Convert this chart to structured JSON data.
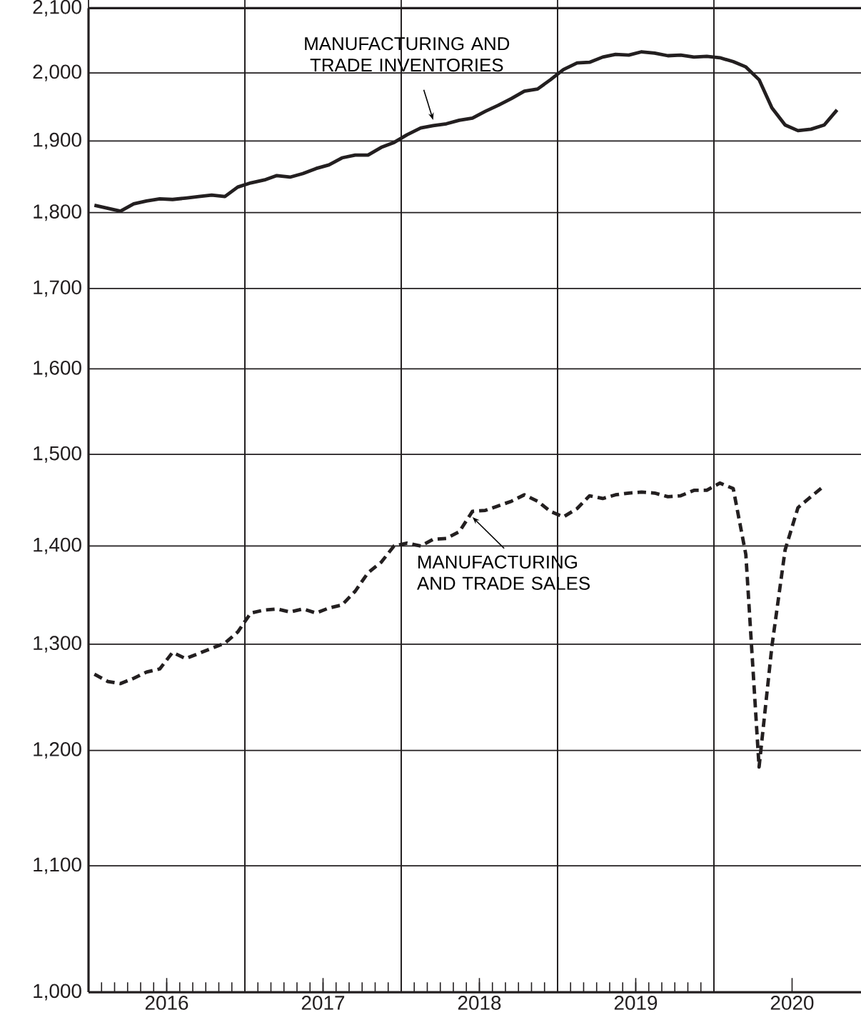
{
  "chart_data": {
    "type": "line",
    "log": "y",
    "grid": true,
    "marker": "none",
    "xlim": [
      "2016-01-01",
      "2020-12-10"
    ],
    "xticks": [
      {
        "value": "2016-01-01",
        "label": null
      },
      {
        "value": "2016-07-01",
        "label": "2016"
      },
      {
        "value": "2017-01-01",
        "label": null
      },
      {
        "value": "2017-07-01",
        "label": "2017"
      },
      {
        "value": "2018-01-01",
        "label": null
      },
      {
        "value": "2018-07-01",
        "label": "2018"
      },
      {
        "value": "2019-01-01",
        "label": null
      },
      {
        "value": "2019-07-01",
        "label": "2019"
      },
      {
        "value": "2020-01-01",
        "label": null
      },
      {
        "value": "2020-07-01",
        "label": "2020"
      }
    ],
    "ylim": [
      1000,
      2100
    ],
    "yticks": [
      {
        "value": 1000,
        "label": "1,000"
      },
      {
        "value": 1100,
        "label": "1,100"
      },
      {
        "value": 1200,
        "label": "1,200"
      },
      {
        "value": 1300,
        "label": "1,300"
      },
      {
        "value": 1400,
        "label": "1,400"
      },
      {
        "value": 1500,
        "label": "1,500"
      },
      {
        "value": 1600,
        "label": "1,600"
      },
      {
        "value": 1700,
        "label": "1,700"
      },
      {
        "value": 1800,
        "label": "1,800"
      },
      {
        "value": 1900,
        "label": "1,900"
      },
      {
        "value": 2000,
        "label": "2,000"
      },
      {
        "value": 2100,
        "label": "2,100"
      }
    ],
    "series": [
      {
        "name": "MANUFACTURING AND TRADE INVENTORIES",
        "color": "#231f20",
        "line_style": "solid",
        "x": [
          "2016-01-15",
          "2016-02-15",
          "2016-03-15",
          "2016-04-15",
          "2016-05-15",
          "2016-06-15",
          "2016-07-15",
          "2016-08-15",
          "2016-09-15",
          "2016-10-15",
          "2016-11-15",
          "2016-12-15",
          "2017-01-15",
          "2017-02-15",
          "2017-03-15",
          "2017-04-15",
          "2017-05-15",
          "2017-06-15",
          "2017-07-15",
          "2017-08-15",
          "2017-09-15",
          "2017-10-15",
          "2017-11-15",
          "2017-12-15",
          "2018-01-15",
          "2018-02-15",
          "2018-03-15",
          "2018-04-15",
          "2018-05-15",
          "2018-06-15",
          "2018-07-15",
          "2018-08-15",
          "2018-09-15",
          "2018-10-15",
          "2018-11-15",
          "2018-12-15",
          "2019-01-15",
          "2019-02-15",
          "2019-03-15",
          "2019-04-15",
          "2019-05-15",
          "2019-06-15",
          "2019-07-15",
          "2019-08-15",
          "2019-09-15",
          "2019-10-15",
          "2019-11-15",
          "2019-12-15",
          "2020-01-15",
          "2020-02-15",
          "2020-03-15",
          "2020-04-15",
          "2020-05-15",
          "2020-06-15",
          "2020-07-15",
          "2020-08-15",
          "2020-09-15",
          "2020-10-15"
        ],
        "values": [
          1810,
          1806,
          1802,
          1812,
          1816,
          1819,
          1818,
          1820,
          1822,
          1824,
          1822,
          1835,
          1841,
          1845,
          1851,
          1849,
          1854,
          1861,
          1866,
          1876,
          1880,
          1880,
          1891,
          1898,
          1909,
          1919,
          1922,
          1925,
          1930,
          1933,
          1943,
          1952,
          1962,
          1973,
          1976,
          1990,
          2005,
          2015,
          2016,
          2024,
          2028,
          2027,
          2032,
          2030,
          2026,
          2027,
          2024,
          2025,
          2023,
          2017,
          2009,
          1990,
          1948,
          1923,
          1915,
          1917,
          1923,
          1945
        ]
      },
      {
        "name": "MANUFACTURING AND TRADE SALES",
        "color": "#231f20",
        "line_style": "dashed",
        "x": [
          "2016-01-15",
          "2016-02-15",
          "2016-03-15",
          "2016-04-15",
          "2016-05-15",
          "2016-06-15",
          "2016-07-15",
          "2016-08-15",
          "2016-09-15",
          "2016-10-15",
          "2016-11-15",
          "2016-12-15",
          "2017-01-15",
          "2017-02-15",
          "2017-03-15",
          "2017-04-15",
          "2017-05-15",
          "2017-06-15",
          "2017-07-15",
          "2017-08-15",
          "2017-09-15",
          "2017-10-15",
          "2017-11-15",
          "2017-12-15",
          "2018-01-15",
          "2018-02-15",
          "2018-03-15",
          "2018-04-15",
          "2018-05-15",
          "2018-06-15",
          "2018-07-15",
          "2018-08-15",
          "2018-09-15",
          "2018-10-15",
          "2018-11-15",
          "2018-12-15",
          "2019-01-15",
          "2019-02-15",
          "2019-03-15",
          "2019-04-15",
          "2019-05-15",
          "2019-06-15",
          "2019-07-15",
          "2019-08-15",
          "2019-09-15",
          "2019-10-15",
          "2019-11-15",
          "2019-12-15",
          "2020-01-15",
          "2020-02-15",
          "2020-03-15",
          "2020-04-15",
          "2020-05-15",
          "2020-06-15",
          "2020-07-15",
          "2020-08-15",
          "2020-09-15"
        ],
        "values": [
          1271,
          1264,
          1262,
          1267,
          1273,
          1276,
          1292,
          1286,
          1291,
          1296,
          1301,
          1312,
          1331,
          1334,
          1335,
          1332,
          1335,
          1331,
          1336,
          1339,
          1353,
          1372,
          1383,
          1400,
          1403,
          1400,
          1407,
          1408,
          1415,
          1437,
          1438,
          1443,
          1448,
          1455,
          1448,
          1437,
          1431,
          1440,
          1454,
          1451,
          1455,
          1457,
          1458,
          1457,
          1453,
          1454,
          1460,
          1460,
          1468,
          1462,
          1391,
          1185,
          1298,
          1396,
          1441,
          1453,
          1465
        ]
      }
    ]
  }
}
